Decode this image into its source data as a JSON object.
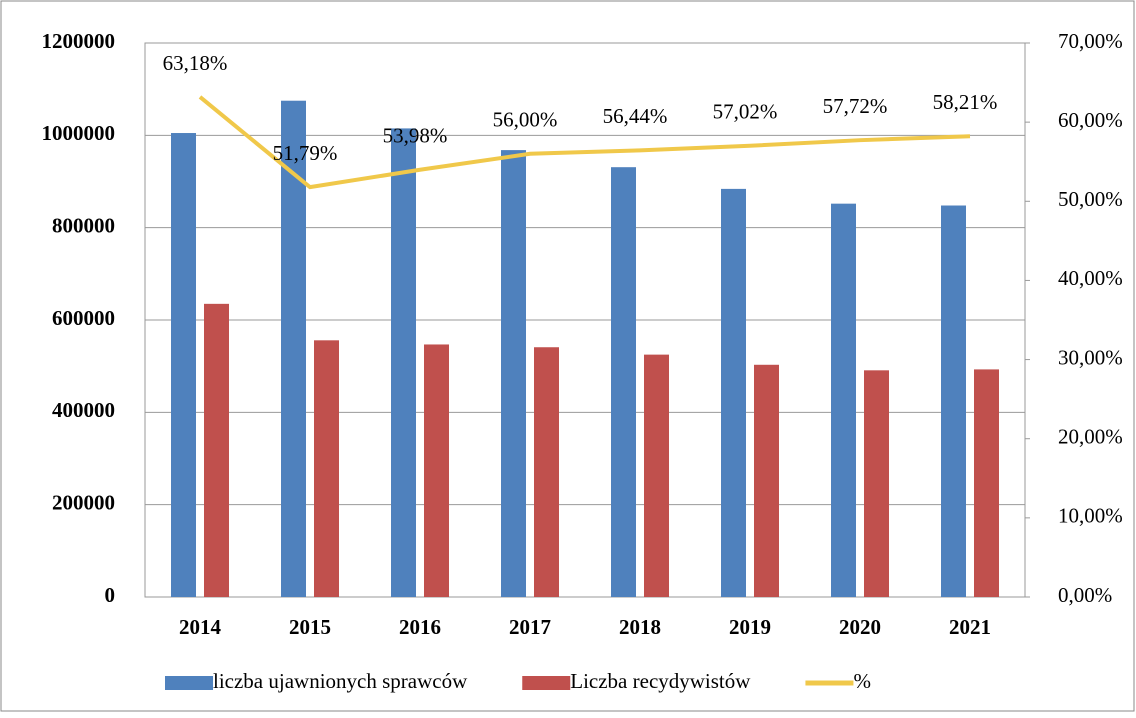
{
  "chart_data": {
    "type": "bar_line",
    "categories": [
      "2014",
      "2015",
      "2016",
      "2017",
      "2018",
      "2019",
      "2020",
      "2021"
    ],
    "series": [
      {
        "name": "liczba ujawnionych sprawców",
        "color": "#4f81bd",
        "type": "bar",
        "values": [
          1005000,
          1075000,
          1015000,
          968000,
          931000,
          884000,
          852000,
          848000
        ]
      },
      {
        "name": "Liczba recydywistów",
        "color": "#c0504d",
        "type": "bar",
        "values": [
          635000,
          556000,
          547000,
          541000,
          525000,
          503000,
          491000,
          493000
        ]
      },
      {
        "name": "%",
        "color": "#f0c84a",
        "type": "line",
        "axis": "y2",
        "values": [
          63.18,
          51.79,
          53.98,
          56.0,
          56.44,
          57.02,
          57.72,
          58.21
        ],
        "value_labels": [
          "63,18%",
          "51,79%",
          "53,98%",
          "56,00%",
          "56,44%",
          "57,02%",
          "57,72%",
          "58,21%"
        ]
      }
    ],
    "ylim": [
      0,
      1200000
    ],
    "yticks": [
      0,
      200000,
      400000,
      600000,
      800000,
      1000000,
      1200000
    ],
    "y2lim": [
      0,
      70
    ],
    "y2ticks": [
      {
        "value": 0,
        "label": "0,00%"
      },
      {
        "value": 10,
        "label": "10,00%"
      },
      {
        "value": 20,
        "label": "20,00%"
      },
      {
        "value": 30,
        "label": "30,00%"
      },
      {
        "value": 40,
        "label": "40,00%"
      },
      {
        "value": 50,
        "label": "50,00%"
      },
      {
        "value": 60,
        "label": "60,00%"
      },
      {
        "value": 70,
        "label": "70,00%"
      }
    ],
    "grid": true,
    "legend": "bottom"
  }
}
